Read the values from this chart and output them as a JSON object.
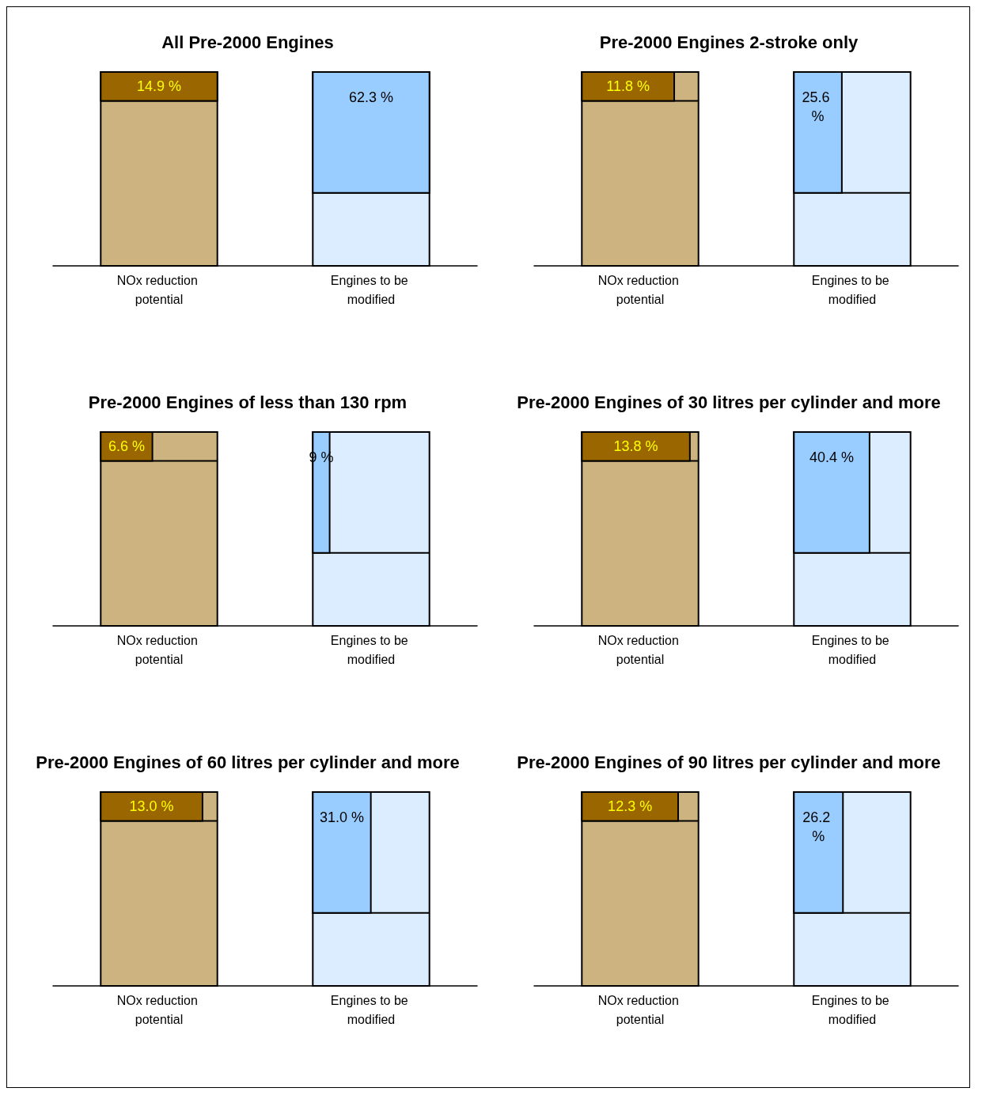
{
  "chart_data": [
    {
      "type": "other",
      "title": "All Pre-2000 Engines",
      "categories": [
        "NOx reduction potential",
        "Engines to be modified"
      ],
      "values": [
        14.9,
        62.3
      ],
      "value_labels": [
        "14.9 %",
        "62.3 %"
      ],
      "colors": [
        "#996600",
        "#99ccff"
      ]
    },
    {
      "type": "other",
      "title": "Pre-2000 Engines 2-stroke only",
      "categories": [
        "NOx reduction potential",
        "Engines to be modified"
      ],
      "values": [
        11.8,
        25.6
      ],
      "value_labels": [
        "11.8 %",
        "25.6 %"
      ],
      "colors": [
        "#996600",
        "#99ccff"
      ]
    },
    {
      "type": "other",
      "title": "Pre-2000 Engines of less than 130 rpm",
      "categories": [
        "NOx reduction potential",
        "Engines to be modified"
      ],
      "values": [
        6.6,
        9
      ],
      "value_labels": [
        "6.6 %",
        "9 %"
      ],
      "colors": [
        "#996600",
        "#99ccff"
      ]
    },
    {
      "type": "other",
      "title": "Pre-2000 Engines of 30 litres per cylinder and more",
      "categories": [
        "NOx reduction potential",
        "Engines to be modified"
      ],
      "values": [
        13.8,
        40.4
      ],
      "value_labels": [
        "13.8 %",
        "40.4 %"
      ],
      "colors": [
        "#996600",
        "#99ccff"
      ]
    },
    {
      "type": "other",
      "title": "Pre-2000 Engines of 60 litres per cylinder and more",
      "categories": [
        "NOx reduction potential",
        "Engines to be modified"
      ],
      "values": [
        13.0,
        31.0
      ],
      "value_labels": [
        "13.0 %",
        "31.0 %"
      ],
      "colors": [
        "#996600",
        "#99ccff"
      ]
    },
    {
      "type": "other",
      "title": "Pre-2000 Engines of 90 litres per cylinder and more",
      "categories": [
        "NOx reduction potential",
        "Engines to be modified"
      ],
      "values": [
        12.3,
        26.2
      ],
      "value_labels": [
        "12.3 %",
        "26.2 %"
      ],
      "colors": [
        "#996600",
        "#99ccff"
      ]
    }
  ]
}
